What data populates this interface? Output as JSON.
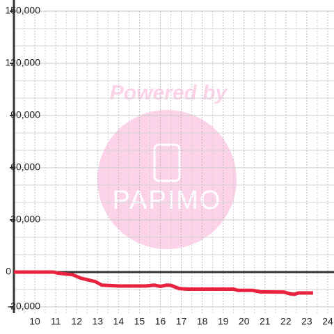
{
  "chart_data": {
    "type": "line",
    "annotations": [
      "Powered by",
      "PAPIMO"
    ],
    "xlim": [
      9,
      24.3
    ],
    "xticks": [
      10,
      11,
      12,
      13,
      14,
      15,
      16,
      17,
      18,
      19,
      20,
      21,
      22,
      23,
      24
    ],
    "xminorticks": [
      9.5,
      10.5,
      11.5,
      12.5,
      13.5,
      14.5,
      15.5,
      16.5,
      17.5,
      18.5,
      19.5,
      20.5,
      21.5,
      22.5,
      23.5
    ],
    "ylim": [
      -20000,
      150000
    ],
    "yticks": [
      {
        "value": 150000,
        "label": "150,000"
      },
      {
        "value": 120000,
        "label": "120,000"
      },
      {
        "value": 90000,
        "label": "90,000"
      },
      {
        "value": 60000,
        "label": "60,000"
      },
      {
        "value": 30000,
        "label": "30,000"
      },
      0,
      {
        "value": -20000,
        "label": "-20,000"
      }
    ],
    "yminorticks": [
      140000,
      130000,
      110000,
      100000,
      80000,
      70000,
      50000,
      40000,
      20000,
      10000,
      -10000
    ],
    "grid": true,
    "series": [
      {
        "color": "#e8233f",
        "x": [
          9,
          10.9,
          11.1,
          11.8,
          12.2,
          12.9,
          13.2,
          13.7,
          14,
          15.3,
          15.7,
          16,
          16.3,
          16.5,
          16.9,
          17.3,
          19.5,
          19.7,
          20.4,
          20.8,
          21.9,
          22.2,
          22.4,
          22.6,
          23.3
        ],
        "values": [
          0,
          0,
          -600,
          -1500,
          -3500,
          -5500,
          -7500,
          -7800,
          -8000,
          -8000,
          -7500,
          -8200,
          -7500,
          -7600,
          -9500,
          -9800,
          -9800,
          -10500,
          -10500,
          -11400,
          -11500,
          -12500,
          -12800,
          -12000,
          -12000
        ]
      }
    ]
  }
}
